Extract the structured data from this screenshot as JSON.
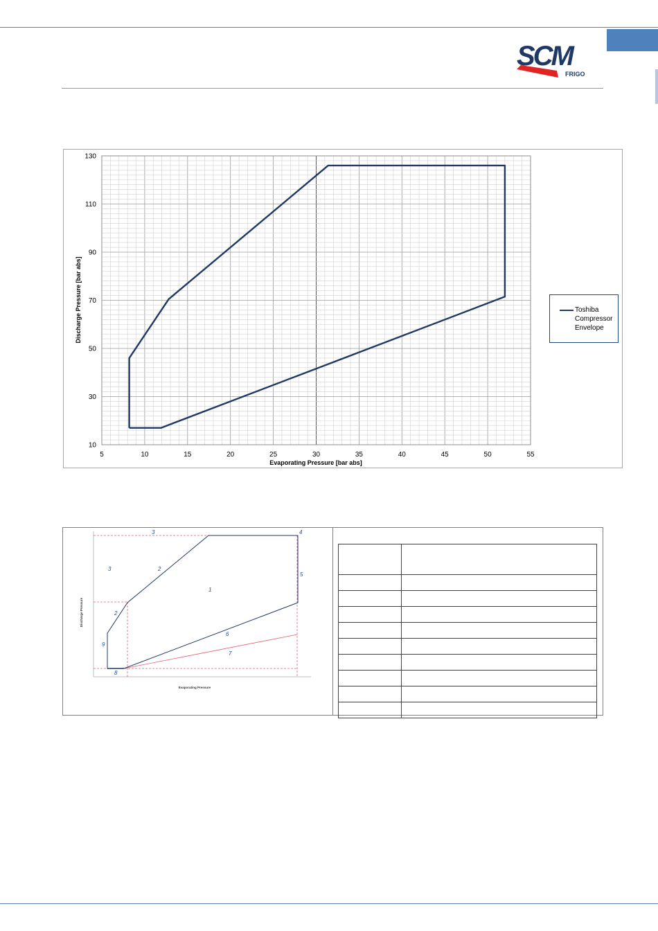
{
  "logo": {
    "main_text": "SCM",
    "sub_text": "FRIGO",
    "colors": {
      "navy": "#1f3864",
      "red": "#e02424"
    }
  },
  "colors": {
    "accent": "#4f81bd",
    "series": "#1f3864",
    "rule": "#5b7fb6"
  },
  "chart_data": {
    "type": "line",
    "title": "",
    "xlabel": "Evaporating Pressure  [bar abs]",
    "ylabel": "Discharge Pressure  [bar abs]",
    "xlim": [
      5,
      55
    ],
    "ylim": [
      10,
      130
    ],
    "x_ticks": [
      5,
      10,
      15,
      20,
      25,
      30,
      35,
      40,
      45,
      50,
      55
    ],
    "y_ticks": [
      10,
      30,
      50,
      70,
      90,
      110,
      130
    ],
    "grid": true,
    "legend_position": "right",
    "series": [
      {
        "name": "Toshiba Compressor Envelope",
        "x": [
          8.2,
          8.2,
          12.8,
          31.4,
          52.0,
          52.0,
          31.4,
          11.9,
          8.2
        ],
        "y": [
          17.0,
          46.0,
          70.5,
          126.0,
          126.0,
          71.5,
          43.5,
          17.0,
          17.0
        ]
      }
    ]
  },
  "diagram": {
    "xlabel": "Evaporating Pressure",
    "ylabel": "Discharge Pressure",
    "region_labels": [
      "1",
      "2",
      "2",
      "3",
      "3",
      "4",
      "5",
      "6",
      "7",
      "8",
      "9"
    ]
  },
  "table": {
    "header": [
      "",
      ""
    ],
    "rows": [
      [
        "",
        ""
      ],
      [
        "",
        ""
      ],
      [
        "",
        ""
      ],
      [
        "",
        ""
      ],
      [
        "",
        ""
      ],
      [
        "",
        ""
      ],
      [
        "",
        ""
      ],
      [
        "",
        ""
      ],
      [
        "",
        ""
      ]
    ]
  }
}
